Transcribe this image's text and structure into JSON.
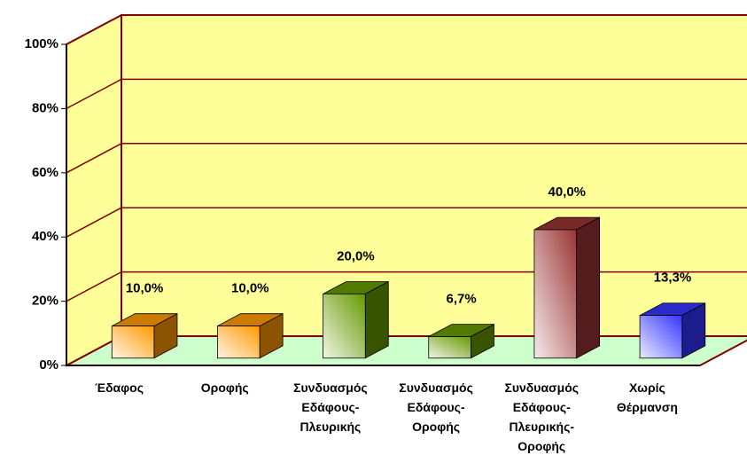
{
  "chart_data": {
    "type": "bar3d",
    "categories": [
      "Έδαφος",
      "Οροφής",
      "Συνδυασμός\nΕδάφους-\nΠλευρικής",
      "Συνδυασμός\nΕδάφους-\nΟροφής",
      "Συνδυασμός\nΕδάφους-\nΠλευρικής-\nΟροφής",
      "Χωρίς\nΘέρμανση"
    ],
    "values": [
      10.0,
      10.0,
      20.0,
      6.7,
      40.0,
      13.3
    ],
    "value_labels": [
      "10,0%",
      "10,0%",
      "20,0%",
      "6,7%",
      "40,0%",
      "13,3%"
    ],
    "colors": [
      "#ff9900",
      "#ff9900",
      "#669900",
      "#669900",
      "#993333",
      "#3333ff"
    ],
    "ylim": [
      0,
      100
    ],
    "yticks": [
      {
        "value": 0,
        "label": "0%"
      },
      {
        "value": 20,
        "label": "20%"
      },
      {
        "value": 40,
        "label": "40%"
      },
      {
        "value": 60,
        "label": "60%"
      },
      {
        "value": 80,
        "label": "80%"
      },
      {
        "value": 100,
        "label": "100%"
      }
    ],
    "grid": true
  }
}
